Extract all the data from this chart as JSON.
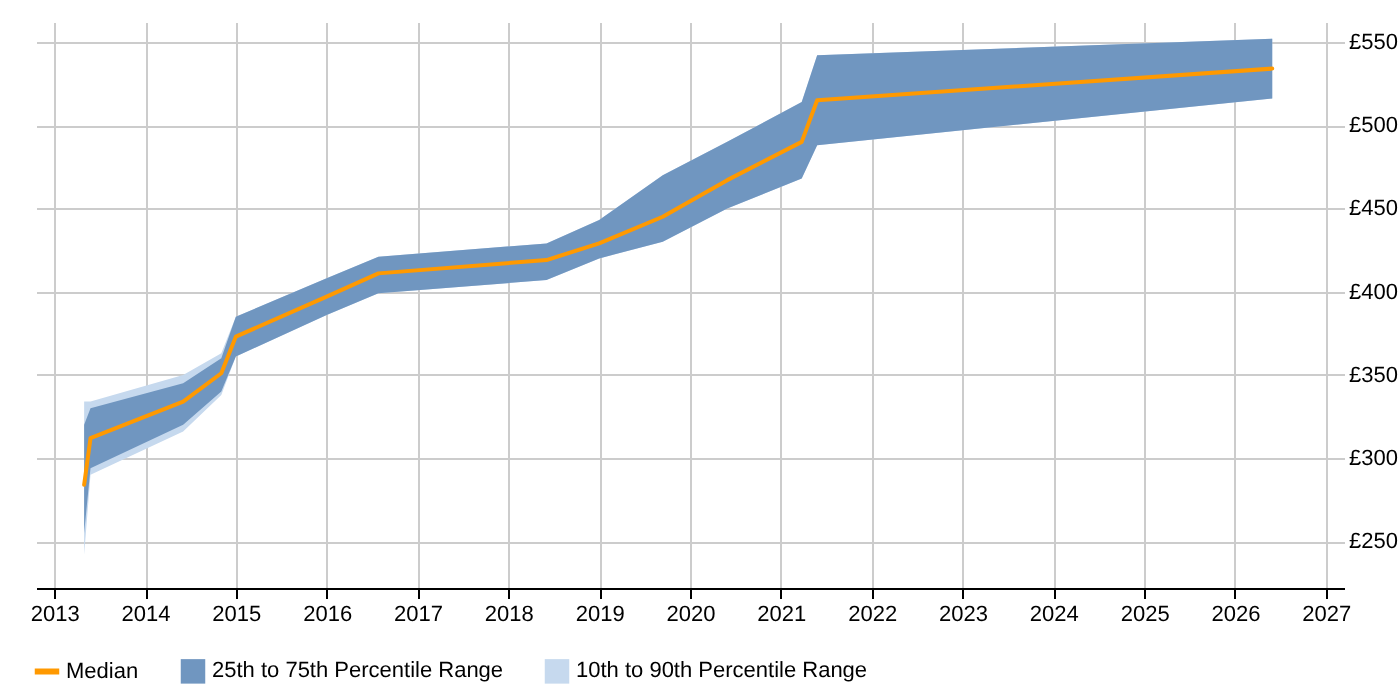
{
  "chart_data": {
    "type": "line",
    "x": [
      2013.33,
      2013.4,
      2014.42,
      2014.84,
      2015.0,
      2016.0,
      2016.57,
      2018.42,
      2019.0,
      2019.7,
      2020.41,
      2021.23,
      2021.4,
      2026.41
    ],
    "series": [
      {
        "name": "Median",
        "color": "#ff9900",
        "values": [
          284,
          312,
          334,
          351,
          373,
          397,
          411,
          419,
          429,
          445,
          467,
          490,
          515,
          534
        ]
      },
      {
        "name": "25th to 75th Percentile Range",
        "color": "#7096c0",
        "values": [
          null,
          null,
          null,
          null,
          null,
          null,
          null,
          null,
          null,
          null,
          null,
          null,
          null,
          null
        ],
        "lower": [
          255,
          294,
          320,
          340,
          361,
          386,
          399,
          407,
          420,
          430,
          450,
          468,
          488,
          516
        ],
        "upper": [
          320,
          330,
          345,
          360,
          385,
          408,
          421,
          429,
          443,
          470,
          490,
          514,
          542,
          552
        ]
      },
      {
        "name": "10th to 90th Percentile Range",
        "color": "#c6d9ee",
        "values": [
          null,
          null,
          null,
          null,
          null,
          null,
          null,
          null,
          null,
          null,
          null,
          null,
          null,
          null
        ],
        "lower": [
          242,
          290,
          316,
          338,
          361,
          386,
          399,
          407,
          420,
          430,
          450,
          468,
          488,
          516
        ],
        "upper": [
          334,
          334,
          350,
          363,
          385,
          408,
          421,
          429,
          443,
          470,
          490,
          514,
          542,
          552
        ]
      }
    ],
    "xlim": [
      2012.8,
      2027.2
    ],
    "xticks": [
      2013,
      2014,
      2015,
      2016,
      2017,
      2018,
      2019,
      2020,
      2021,
      2022,
      2023,
      2024,
      2025,
      2026,
      2027
    ],
    "ylim": [
      222,
      562
    ],
    "yticks": [
      {
        "value": 250,
        "label": "£250"
      },
      {
        "value": 300,
        "label": "£300"
      },
      {
        "value": 350,
        "label": "£350"
      },
      {
        "value": 400,
        "label": "£400"
      },
      {
        "value": 450,
        "label": "£450"
      },
      {
        "value": 500,
        "label": "£500"
      },
      {
        "value": 550,
        "label": "£550"
      }
    ],
    "grid": true,
    "legend": "bottom"
  }
}
